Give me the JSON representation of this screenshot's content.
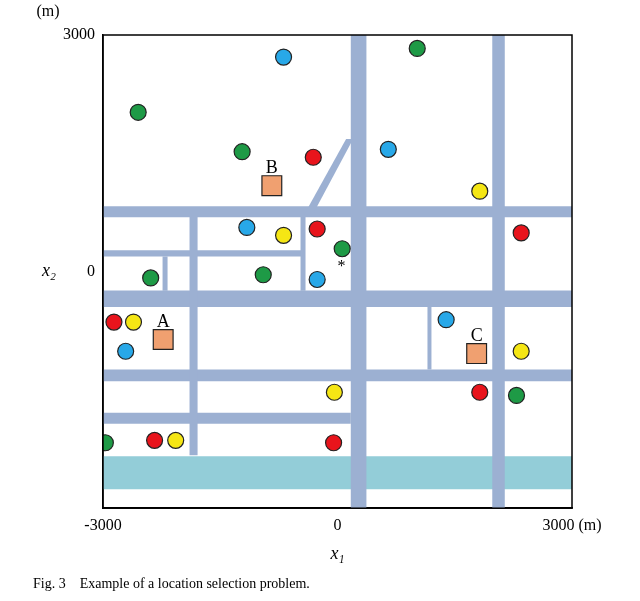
{
  "chart_data": {
    "type": "scatter",
    "title": "Fig. 3    Example of a location selection problem.",
    "x_label": "x₁",
    "y_label": "x₂",
    "y_unit": "(m)",
    "xlim": [
      -3000,
      3000
    ],
    "ylim": [
      -3000,
      3000
    ],
    "xticks": [
      -3000,
      0,
      {
        "value": 3000,
        "label": "3000 (m)"
      }
    ],
    "yticks": [
      0,
      3000
    ],
    "grid": false,
    "series": [
      {
        "color": "#e8141c",
        "marker": "circle",
        "points": [
          [
            -310,
            1450
          ],
          [
            -260,
            540
          ],
          [
            2350,
            490
          ],
          [
            -2860,
            -640
          ],
          [
            1820,
            -1530
          ],
          [
            -2340,
            -2140
          ],
          [
            -50,
            -2170
          ]
        ]
      },
      {
        "color": "#f5e614",
        "marker": "circle",
        "points": [
          [
            1820,
            1020
          ],
          [
            -690,
            460
          ],
          [
            -2610,
            -640
          ],
          [
            2350,
            -1010
          ],
          [
            -40,
            -1530
          ],
          [
            -2070,
            -2140
          ]
        ]
      },
      {
        "color": "#28a8e8",
        "marker": "circle",
        "points": [
          [
            -690,
            2720
          ],
          [
            650,
            1550
          ],
          [
            -1160,
            560
          ],
          [
            -260,
            -100
          ],
          [
            1390,
            -610
          ],
          [
            -2710,
            -1010
          ]
        ]
      },
      {
        "color": "#1e9a46",
        "marker": "circle",
        "points": [
          [
            1020,
            2830
          ],
          [
            -2550,
            2020
          ],
          [
            -1220,
            1520
          ],
          [
            60,
            290
          ],
          [
            -2390,
            -80
          ],
          [
            -950,
            -40
          ],
          [
            2290,
            -1570
          ],
          [
            -2970,
            -2170
          ]
        ]
      },
      {
        "color": "#f0a070",
        "marker": "square",
        "points": [
          [
            -2230,
            -860
          ],
          [
            -840,
            1090
          ],
          [
            1780,
            -1040
          ]
        ],
        "labels": [
          "A",
          "B",
          "C"
        ]
      }
    ],
    "annotations": [
      {
        "text": "*",
        "x": 0,
        "y": 60
      }
    ],
    "roads": {
      "color": "#9cb0d2",
      "shapes": [
        [
          [
            170,
            -3000
          ],
          [
            370,
            -3000
          ],
          [
            370,
            3000
          ],
          [
            170,
            3000
          ]
        ],
        [
          [
            1980,
            -3000
          ],
          [
            2140,
            -3000
          ],
          [
            2140,
            3000
          ],
          [
            1980,
            3000
          ]
        ],
        [
          [
            -3000,
            690
          ],
          [
            3000,
            690
          ],
          [
            3000,
            830
          ],
          [
            -3000,
            830
          ]
        ],
        [
          [
            -3000,
            -450
          ],
          [
            3000,
            -450
          ],
          [
            3000,
            -240
          ],
          [
            -3000,
            -240
          ]
        ],
        [
          [
            -3000,
            -1390
          ],
          [
            3000,
            -1390
          ],
          [
            3000,
            -1240
          ],
          [
            -3000,
            -1240
          ]
        ],
        [
          [
            -3000,
            -1930
          ],
          [
            170,
            -1930
          ],
          [
            170,
            -1790
          ],
          [
            -3000,
            -1790
          ]
        ],
        [
          [
            -3000,
            190
          ],
          [
            -435,
            190
          ],
          [
            -435,
            270
          ],
          [
            -3000,
            270
          ]
        ],
        [
          [
            -1893,
            -2330
          ],
          [
            -1790,
            -2330
          ],
          [
            -1790,
            691
          ],
          [
            -1893,
            691
          ]
        ],
        [
          [
            -2238,
            -243
          ],
          [
            -2174,
            -243
          ],
          [
            -2174,
            192
          ],
          [
            -2238,
            192
          ]
        ],
        [
          [
            -473,
            -243
          ],
          [
            -409,
            -243
          ],
          [
            -409,
            691
          ],
          [
            -473,
            691
          ]
        ],
        [
          [
            1151,
            -1241
          ],
          [
            1202,
            -1241
          ],
          [
            1202,
            -448
          ],
          [
            1151,
            -448
          ]
        ],
        [
          [
            -440,
            700
          ],
          [
            -330,
            700
          ],
          [
            200,
            1680
          ],
          [
            110,
            1680
          ]
        ]
      ]
    },
    "river": {
      "color": "#93cdd8",
      "shape": [
        [
          -3000,
          -2760
        ],
        [
          3000,
          -2760
        ],
        [
          3000,
          -2340
        ],
        [
          -3000,
          -2340
        ]
      ]
    }
  }
}
